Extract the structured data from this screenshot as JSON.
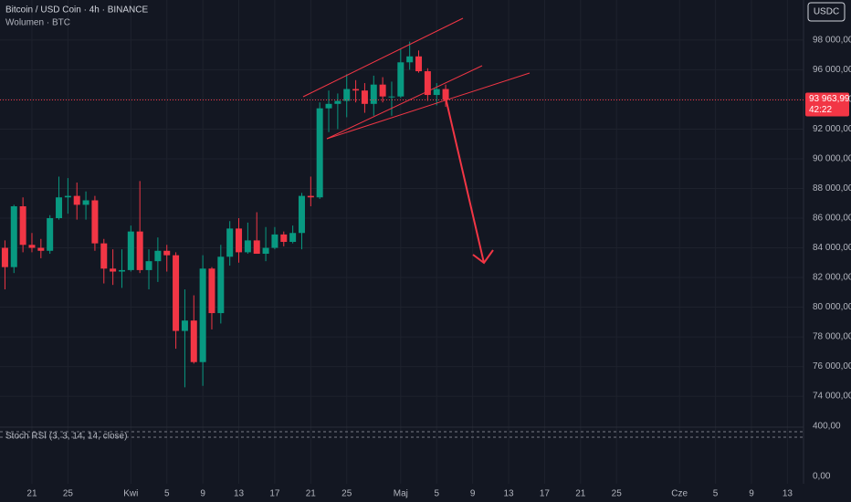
{
  "chart_data": {
    "type": "candlestick",
    "title": "Bitcoin / USD Coin · 4h · BINANCE",
    "subtitle": "Wolumen · BTC",
    "currency_button": "USDC",
    "indicator_title": "Stoch RSI (3, 3, 14, 14, close)",
    "volume_axis_label": "400,00",
    "indicator_axis_label": "0,00",
    "up_color": "#089981",
    "down_color": "#f23645",
    "grid": true,
    "categories": [
      null,
      null,
      null,
      "21",
      null,
      null,
      null,
      "25",
      null,
      null,
      null,
      null,
      null,
      null,
      "Kwi",
      null,
      null,
      null,
      "5",
      null,
      null,
      null,
      "9",
      null,
      null,
      null,
      "13",
      null,
      null,
      null,
      "17",
      null,
      null,
      null,
      "21",
      null,
      null,
      null,
      "25",
      null,
      null,
      null,
      null,
      null,
      "Maj",
      null,
      null,
      null,
      "5",
      null,
      null,
      null,
      "9",
      null,
      null,
      null,
      "13",
      null,
      null,
      null,
      "17",
      null,
      null,
      null,
      "21",
      null,
      null,
      null,
      "25",
      null,
      null,
      null,
      null,
      null,
      null,
      "Cze",
      null,
      null,
      null,
      "5",
      null,
      null,
      null,
      "9",
      null,
      null,
      null,
      "13",
      null
    ],
    "open": [
      84000,
      82700,
      86800,
      84200,
      84000,
      83800,
      86000,
      87400,
      87500,
      86900,
      87200,
      84300,
      82600,
      82400,
      82500,
      85100,
      82500,
      83100,
      83800,
      83500,
      78400,
      79100,
      76300,
      82600,
      79600,
      83400,
      85300,
      83700,
      84500,
      83600,
      84000,
      84900,
      84400,
      85000,
      87500,
      87400,
      93400,
      93700,
      93900,
      94700,
      94600,
      93700,
      95000,
      94200,
      94200,
      96500,
      96900,
      95900,
      94300,
      94700,
      null,
      null,
      null,
      null,
      null,
      null,
      null,
      null,
      null,
      null,
      null,
      null,
      null,
      null,
      null,
      null,
      null,
      null,
      null,
      null,
      null,
      null,
      null,
      null,
      null,
      null,
      null,
      null,
      null,
      null,
      null,
      null,
      null,
      null,
      null,
      null,
      null,
      null,
      null
    ],
    "high": [
      84500,
      86900,
      87400,
      85000,
      84600,
      86200,
      88800,
      88700,
      88400,
      87800,
      87500,
      84600,
      83900,
      83900,
      85500,
      88500,
      83900,
      84700,
      84200,
      83700,
      81200,
      80800,
      83500,
      82700,
      84200,
      85800,
      86000,
      85700,
      86400,
      85400,
      85400,
      85100,
      85500,
      87700,
      88800,
      93800,
      94600,
      94400,
      95700,
      95300,
      95100,
      95600,
      95500,
      95200,
      97400,
      97900,
      97300,
      96100,
      95100,
      95000,
      null,
      null,
      null,
      null,
      null,
      null,
      null,
      null,
      null,
      null,
      null,
      null,
      null,
      null,
      null,
      null,
      null,
      null,
      null,
      null,
      null,
      null,
      null,
      null,
      null,
      null,
      null,
      null,
      null,
      null,
      null,
      null,
      null,
      null,
      null,
      null,
      null,
      null,
      null
    ],
    "low": [
      81200,
      82300,
      83700,
      83700,
      83300,
      83600,
      85900,
      86300,
      85900,
      85900,
      83800,
      81600,
      81500,
      81300,
      82400,
      82300,
      81200,
      81700,
      82400,
      77200,
      74600,
      76200,
      74700,
      78500,
      78900,
      82800,
      83000,
      83600,
      83600,
      83100,
      83900,
      84100,
      84300,
      83900,
      86800,
      87300,
      91800,
      92000,
      92800,
      93800,
      93100,
      92900,
      93800,
      92900,
      94100,
      96000,
      95800,
      93900,
      93600,
      93500,
      null,
      null,
      null,
      null,
      null,
      null,
      null,
      null,
      null,
      null,
      null,
      null,
      null,
      null,
      null,
      null,
      null,
      null,
      null,
      null,
      null,
      null,
      null,
      null,
      null,
      null,
      null,
      null,
      null,
      null,
      null,
      null,
      null,
      null,
      null,
      null,
      null,
      null,
      null
    ],
    "close": [
      82700,
      86800,
      84200,
      84000,
      83800,
      86000,
      87400,
      87500,
      86900,
      87200,
      84300,
      82600,
      82400,
      82500,
      85100,
      82500,
      83100,
      83800,
      83500,
      78400,
      79100,
      76300,
      82600,
      79600,
      83400,
      85300,
      83700,
      84500,
      83600,
      84000,
      84900,
      84400,
      85000,
      87500,
      87400,
      93400,
      93700,
      93900,
      94700,
      94600,
      93700,
      95000,
      94200,
      94200,
      96500,
      96900,
      95900,
      94300,
      94700,
      93963.99,
      null,
      null,
      null,
      null,
      null,
      null,
      null,
      null,
      null,
      null,
      null,
      null,
      null,
      null,
      null,
      null,
      null,
      null,
      null,
      null,
      null,
      null,
      null,
      null,
      null,
      null,
      null,
      null,
      null,
      null,
      null,
      null,
      null,
      null,
      null,
      null,
      null,
      null,
      null
    ],
    "ylim": [
      72100,
      100700
    ],
    "yticks": [
      {
        "value": 74000,
        "label": "74 000,00"
      },
      {
        "value": 76000,
        "label": "76 000,00"
      },
      {
        "value": 78000,
        "label": "78 000,00"
      },
      {
        "value": 80000,
        "label": "80 000,00"
      },
      {
        "value": 82000,
        "label": "82 000,00"
      },
      {
        "value": 84000,
        "label": "84 000,00"
      },
      {
        "value": 86000,
        "label": "86 000,00"
      },
      {
        "value": 88000,
        "label": "88 000,00"
      },
      {
        "value": 90000,
        "label": "90 000,00"
      },
      {
        "value": 92000,
        "label": "92 000,00"
      },
      {
        "value": 94000,
        "label": "94 000,00"
      },
      {
        "value": 96000,
        "label": "96 000,00"
      },
      {
        "value": 98000,
        "label": "98 000,00"
      }
    ],
    "last_price": {
      "value": 93963.99,
      "label": "93 963,99"
    },
    "countdown": "42:22"
  }
}
